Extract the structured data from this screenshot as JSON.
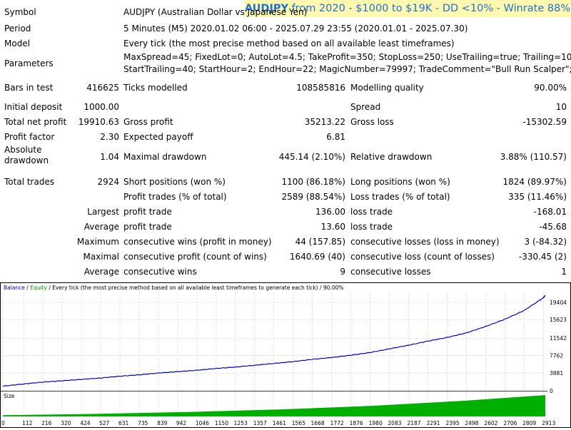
{
  "banner": {
    "symbol": "AUDJPY",
    "text": "from 2020 - $1000 to $19K - DD <10% - Winrate 88%"
  },
  "report": {
    "symbol": {
      "label": "Symbol",
      "value": "AUDJPY (Australian Dollar vs Japanese Yen)"
    },
    "period": {
      "label": "Period",
      "value": "5 Minutes (M5) 2020.01.02 06:00 - 2025.07.29 23:55 (2020.01.01 - 2025.07.30)"
    },
    "model": {
      "label": "Model",
      "value": "Every tick (the most precise method based on all available least timeframes)"
    },
    "parameters": {
      "label": "Parameters",
      "line1": "MaxSpread=45; FixedLot=0; AutoLot=4.5; TakeProfit=350; StopLoss=250; UseTrailing=true; Trailing=10;",
      "line2": "StartTrailing=40; StartHour=2; EndHour=22; MagicNumber=79997; TradeComment=\"Bull Run Scalper\";"
    },
    "bars": {
      "label": "Bars in test",
      "value": "416625"
    },
    "ticks": {
      "label": "Ticks modelled",
      "value": "108585816"
    },
    "quality": {
      "label": "Modelling quality",
      "value": "90.00%"
    },
    "initial_deposit": {
      "label": "Initial deposit",
      "value": "1000.00"
    },
    "spread": {
      "label": "Spread",
      "value": "10"
    },
    "net_profit": {
      "label": "Total net profit",
      "value": "19910.63"
    },
    "gross_profit": {
      "label": "Gross profit",
      "value": "35213.22"
    },
    "gross_loss": {
      "label": "Gross loss",
      "value": "-15302.59"
    },
    "profit_factor": {
      "label": "Profit factor",
      "value": "2.30"
    },
    "expected_payoff": {
      "label": "Expected payoff",
      "value": "6.81"
    },
    "absolute_drawdown": {
      "label1": "Absolute",
      "label2": "drawdown",
      "value": "1.04"
    },
    "maximal_drawdown": {
      "label": "Maximal drawdown",
      "value": "445.14 (2.10%)"
    },
    "relative_drawdown": {
      "label": "Relative drawdown",
      "value": "3.88% (110.57)"
    },
    "total_trades": {
      "label": "Total trades",
      "value": "2924"
    },
    "short_positions": {
      "label": "Short positions (won %)",
      "value": "1100 (86.18%)"
    },
    "long_positions": {
      "label": "Long positions (won %)",
      "value": "1824 (89.97%)"
    },
    "profit_trades": {
      "label": "Profit trades (% of total)",
      "value": "2589 (88.54%)"
    },
    "loss_trades": {
      "label": "Loss trades (% of total)",
      "value": "335 (11.46%)"
    },
    "largest": {
      "prefix": "Largest",
      "profit_label": "profit trade",
      "profit_value": "136.00",
      "loss_label": "loss trade",
      "loss_value": "-168.01"
    },
    "average": {
      "prefix": "Average",
      "profit_label": "profit trade",
      "profit_value": "13.60",
      "loss_label": "loss trade",
      "loss_value": "-45.68"
    },
    "maximum": {
      "prefix": "Maximum",
      "wins_label": "consecutive wins (profit in money)",
      "wins_value": "44 (157.85)",
      "losses_label": "consecutive losses (loss in money)",
      "losses_value": "3 (-84.32)"
    },
    "maximal": {
      "prefix": "Maximal",
      "profit_label": "consecutive profit (count of wins)",
      "profit_value": "1640.69 (40)",
      "loss_label": "consecutive loss (count of losses)",
      "loss_value": "-330.45 (2)"
    },
    "average_consecutive": {
      "prefix": "Average",
      "wins_label": "consecutive wins",
      "wins_value": "9",
      "losses_label": "consecutive losses",
      "losses_value": "1"
    }
  },
  "chart_data": {
    "type": "line",
    "legend": {
      "balance": "Balance",
      "sep1": " / ",
      "equity": "Equity",
      "rest": " / Every tick (the most precise method based on all available least timeframes to generate each tick) / 90.00%"
    },
    "colors": {
      "balance": "#0000cc",
      "equity": "#00a000",
      "size": "#00b000",
      "grid": "#c8c8c8"
    },
    "y_ticks": [
      "19404",
      "15623",
      "11542",
      "7762",
      "3881",
      "0"
    ],
    "y_tick_values": [
      19404,
      15623,
      11542,
      7762,
      3881,
      0
    ],
    "size_label": "Size",
    "x_ticks": [
      "0",
      "112",
      "216",
      "320",
      "424",
      "527",
      "631",
      "735",
      "839",
      "942",
      "1046",
      "1150",
      "1253",
      "1357",
      "1461",
      "1565",
      "1668",
      "1772",
      "1876",
      "1980",
      "2083",
      "2187",
      "2291",
      "2395",
      "2498",
      "2602",
      "2706",
      "2809",
      "2913"
    ],
    "x_tick_values": [
      0,
      112,
      216,
      320,
      424,
      527,
      631,
      735,
      839,
      942,
      1046,
      1150,
      1253,
      1357,
      1461,
      1565,
      1668,
      1772,
      1876,
      1980,
      2083,
      2187,
      2291,
      2395,
      2498,
      2602,
      2706,
      2809,
      2913
    ],
    "x_max": 2924,
    "series": [
      {
        "name": "Balance",
        "x": [
          0,
          112,
          216,
          320,
          424,
          527,
          631,
          735,
          839,
          942,
          1046,
          1150,
          1253,
          1357,
          1461,
          1565,
          1668,
          1772,
          1876,
          1980,
          2083,
          2187,
          2291,
          2395,
          2498,
          2602,
          2706,
          2809,
          2913,
          2924
        ],
        "values": [
          1000,
          1500,
          1900,
          2200,
          2500,
          2800,
          3200,
          3500,
          3900,
          4200,
          4500,
          4900,
          5200,
          5600,
          6000,
          6400,
          6900,
          7300,
          7800,
          8400,
          9200,
          10000,
          10900,
          11700,
          12700,
          14100,
          15700,
          17600,
          20400,
          20910
        ]
      }
    ],
    "size_area": {
      "x": [
        0,
        500,
        1000,
        1500,
        2000,
        2500,
        2924
      ],
      "values": [
        0.06,
        0.12,
        0.21,
        0.33,
        0.5,
        0.74,
        1.0
      ]
    }
  }
}
